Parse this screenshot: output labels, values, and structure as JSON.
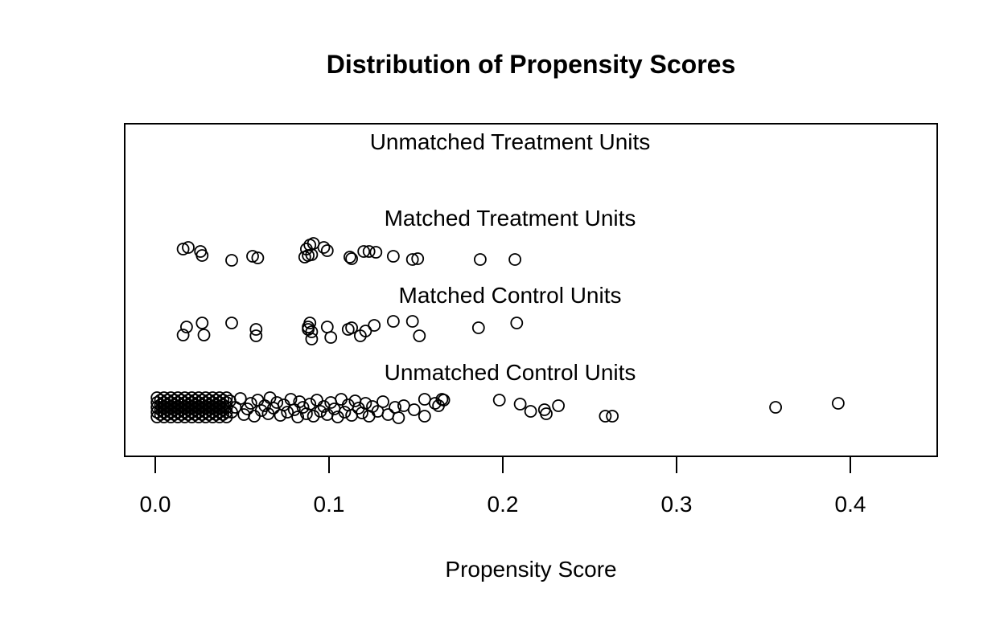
{
  "title": "Distribution of Propensity Scores",
  "axis": {
    "label": "Propensity Score",
    "tick_labels": [
      "0.0",
      "0.1",
      "0.2",
      "0.3",
      "0.4"
    ],
    "tick_values": [
      0,
      0.1,
      0.2,
      0.3,
      0.4
    ]
  },
  "chart_data": {
    "type": "scatter",
    "title": "Distribution of Propensity Scores",
    "xlabel": "Propensity Score",
    "ylabel": "",
    "xlim": [
      -0.018,
      0.45
    ],
    "x_ticks": [
      0,
      0.1,
      0.2,
      0.3,
      0.4
    ],
    "grid": false,
    "legend": false,
    "marker": "open-circle",
    "marker_color": "#000000",
    "note": "Jitter plot of propensity scores by matching group; points are [propensity_score, vertical_jitter_px]. Unmatched Treatment group has no points (all treated units matched).",
    "groups": [
      {
        "label": "Unmatched Treatment Units",
        "points": []
      },
      {
        "label": "Matched Treatment Units",
        "points": [
          [
            0.016,
            -3
          ],
          [
            0.019,
            -5
          ],
          [
            0.026,
            0
          ],
          [
            0.027,
            5
          ],
          [
            0.044,
            11
          ],
          [
            0.056,
            6
          ],
          [
            0.059,
            8
          ],
          [
            0.086,
            7
          ],
          [
            0.087,
            -3
          ],
          [
            0.088,
            5
          ],
          [
            0.089,
            -8
          ],
          [
            0.09,
            4
          ],
          [
            0.091,
            -10
          ],
          [
            0.097,
            -5
          ],
          [
            0.099,
            -1
          ],
          [
            0.112,
            7
          ],
          [
            0.113,
            9
          ],
          [
            0.12,
            0
          ],
          [
            0.123,
            0
          ],
          [
            0.127,
            1
          ],
          [
            0.137,
            6
          ],
          [
            0.148,
            10
          ],
          [
            0.151,
            9
          ],
          [
            0.187,
            10
          ],
          [
            0.207,
            10
          ]
        ]
      },
      {
        "label": "Matched Control Units",
        "points": [
          [
            0.016,
            6
          ],
          [
            0.018,
            -4
          ],
          [
            0.027,
            -9
          ],
          [
            0.028,
            6
          ],
          [
            0.044,
            -9
          ],
          [
            0.058,
            -1
          ],
          [
            0.058,
            7
          ],
          [
            0.088,
            -1
          ],
          [
            0.088,
            -4
          ],
          [
            0.089,
            -9
          ],
          [
            0.09,
            2
          ],
          [
            0.09,
            11
          ],
          [
            0.099,
            -4
          ],
          [
            0.101,
            9
          ],
          [
            0.111,
            -1
          ],
          [
            0.113,
            -3
          ],
          [
            0.118,
            7
          ],
          [
            0.121,
            1
          ],
          [
            0.126,
            -6
          ],
          [
            0.137,
            -11
          ],
          [
            0.148,
            -11
          ],
          [
            0.152,
            7
          ],
          [
            0.186,
            -3
          ],
          [
            0.208,
            -9
          ]
        ]
      },
      {
        "label": "Unmatched Control Units",
        "points": [
          [
            0.001,
            -12
          ],
          [
            0.001,
            -6
          ],
          [
            0.001,
            0
          ],
          [
            0.001,
            6
          ],
          [
            0.001,
            12
          ],
          [
            0.003,
            -9
          ],
          [
            0.003,
            -3
          ],
          [
            0.003,
            3
          ],
          [
            0.003,
            9
          ],
          [
            0.005,
            -12
          ],
          [
            0.005,
            -6
          ],
          [
            0.005,
            0
          ],
          [
            0.005,
            6
          ],
          [
            0.005,
            12
          ],
          [
            0.007,
            -9
          ],
          [
            0.007,
            -3
          ],
          [
            0.007,
            3
          ],
          [
            0.007,
            9
          ],
          [
            0.009,
            -12
          ],
          [
            0.009,
            -6
          ],
          [
            0.009,
            0
          ],
          [
            0.009,
            6
          ],
          [
            0.009,
            12
          ],
          [
            0.011,
            -9
          ],
          [
            0.011,
            -3
          ],
          [
            0.011,
            3
          ],
          [
            0.011,
            9
          ],
          [
            0.013,
            -12
          ],
          [
            0.013,
            -6
          ],
          [
            0.013,
            0
          ],
          [
            0.013,
            6
          ],
          [
            0.013,
            12
          ],
          [
            0.015,
            -9
          ],
          [
            0.015,
            -3
          ],
          [
            0.015,
            3
          ],
          [
            0.015,
            9
          ],
          [
            0.017,
            -12
          ],
          [
            0.017,
            -6
          ],
          [
            0.017,
            0
          ],
          [
            0.017,
            6
          ],
          [
            0.017,
            12
          ],
          [
            0.019,
            -9
          ],
          [
            0.019,
            -3
          ],
          [
            0.019,
            3
          ],
          [
            0.019,
            9
          ],
          [
            0.021,
            -12
          ],
          [
            0.021,
            -6
          ],
          [
            0.021,
            0
          ],
          [
            0.021,
            6
          ],
          [
            0.021,
            12
          ],
          [
            0.023,
            -9
          ],
          [
            0.023,
            -3
          ],
          [
            0.023,
            3
          ],
          [
            0.023,
            9
          ],
          [
            0.025,
            -12
          ],
          [
            0.025,
            -6
          ],
          [
            0.025,
            0
          ],
          [
            0.025,
            6
          ],
          [
            0.025,
            12
          ],
          [
            0.027,
            -9
          ],
          [
            0.027,
            -3
          ],
          [
            0.027,
            3
          ],
          [
            0.027,
            9
          ],
          [
            0.029,
            -12
          ],
          [
            0.029,
            -6
          ],
          [
            0.029,
            0
          ],
          [
            0.029,
            6
          ],
          [
            0.029,
            12
          ],
          [
            0.031,
            -9
          ],
          [
            0.031,
            -3
          ],
          [
            0.031,
            3
          ],
          [
            0.031,
            9
          ],
          [
            0.033,
            -12
          ],
          [
            0.033,
            -6
          ],
          [
            0.033,
            0
          ],
          [
            0.033,
            6
          ],
          [
            0.033,
            12
          ],
          [
            0.035,
            -9
          ],
          [
            0.035,
            -3
          ],
          [
            0.035,
            3
          ],
          [
            0.035,
            9
          ],
          [
            0.037,
            -12
          ],
          [
            0.037,
            -6
          ],
          [
            0.037,
            0
          ],
          [
            0.037,
            6
          ],
          [
            0.037,
            12
          ],
          [
            0.039,
            -9
          ],
          [
            0.039,
            -3
          ],
          [
            0.039,
            3
          ],
          [
            0.039,
            9
          ],
          [
            0.041,
            -12
          ],
          [
            0.041,
            -6
          ],
          [
            0.041,
            0
          ],
          [
            0.041,
            6
          ],
          [
            0.041,
            12
          ],
          [
            0.043,
            -8
          ],
          [
            0.044,
            6
          ],
          [
            0.046,
            0
          ],
          [
            0.049,
            -11
          ],
          [
            0.051,
            9
          ],
          [
            0.053,
            2
          ],
          [
            0.055,
            -5
          ],
          [
            0.057,
            11
          ],
          [
            0.059,
            -9
          ],
          [
            0.061,
            4
          ],
          [
            0.063,
            -2
          ],
          [
            0.065,
            8
          ],
          [
            0.066,
            -12
          ],
          [
            0.068,
            1
          ],
          [
            0.07,
            -6
          ],
          [
            0.072,
            10
          ],
          [
            0.074,
            -3
          ],
          [
            0.076,
            6
          ],
          [
            0.078,
            -10
          ],
          [
            0.08,
            3
          ],
          [
            0.082,
            12
          ],
          [
            0.083,
            -7
          ],
          [
            0.085,
            0
          ],
          [
            0.087,
            8
          ],
          [
            0.089,
            -4
          ],
          [
            0.091,
            11
          ],
          [
            0.093,
            -9
          ],
          [
            0.095,
            5
          ],
          [
            0.097,
            -1
          ],
          [
            0.099,
            9
          ],
          [
            0.101,
            -6
          ],
          [
            0.103,
            2
          ],
          [
            0.105,
            12
          ],
          [
            0.107,
            -10
          ],
          [
            0.109,
            6
          ],
          [
            0.111,
            -3
          ],
          [
            0.113,
            10
          ],
          [
            0.115,
            -8
          ],
          [
            0.117,
            1
          ],
          [
            0.119,
            7
          ],
          [
            0.121,
            -5
          ],
          [
            0.123,
            11
          ],
          [
            0.125,
            -1
          ],
          [
            0.128,
            5
          ],
          [
            0.131,
            -7
          ],
          [
            0.134,
            9
          ],
          [
            0.138,
            0
          ],
          [
            0.14,
            13
          ],
          [
            0.143,
            -2
          ],
          [
            0.149,
            3
          ],
          [
            0.155,
            -10
          ],
          [
            0.155,
            11
          ],
          [
            0.161,
            -5
          ],
          [
            0.163,
            -2
          ],
          [
            0.165,
            -10
          ],
          [
            0.166,
            -9
          ],
          [
            0.198,
            -9
          ],
          [
            0.21,
            -4
          ],
          [
            0.216,
            5
          ],
          [
            0.224,
            3
          ],
          [
            0.225,
            8
          ],
          [
            0.232,
            -2
          ],
          [
            0.259,
            11
          ],
          [
            0.263,
            11
          ],
          [
            0.357,
            0
          ],
          [
            0.393,
            -5
          ]
        ]
      }
    ]
  }
}
